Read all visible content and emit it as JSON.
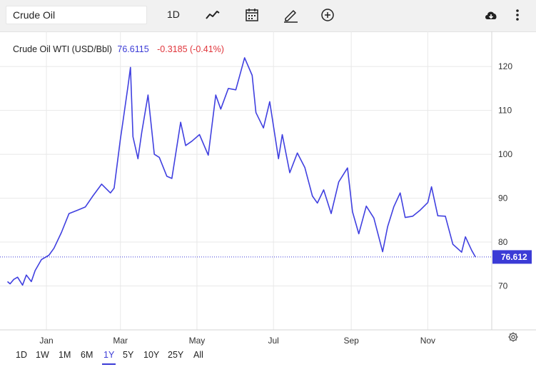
{
  "toolbar": {
    "search_value": "Crude Oil",
    "interval_label": "1D",
    "icons": [
      "line-chart-icon",
      "calendar-icon",
      "draw-pencil-icon",
      "add-circle-icon",
      "cloud-download-icon",
      "more-vertical-icon"
    ]
  },
  "header": {
    "name": "Crude Oil WTI (USD/Bbl)",
    "price": "76.6115",
    "change": "-0.3185 (-0.41%)"
  },
  "colors": {
    "line": "#4040e0",
    "price_tag": "#3b3bd6",
    "negative": "#e0353b",
    "grid": "#e8e8e8"
  },
  "price_tag": "76.612",
  "range_buttons": [
    "1D",
    "1W",
    "1M",
    "6M",
    "1Y",
    "5Y",
    "10Y",
    "25Y",
    "All"
  ],
  "active_range": "1Y",
  "chart_data": {
    "type": "line",
    "title": "",
    "series": [
      {
        "name": "Crude Oil WTI (USD/Bbl)",
        "x": [
          "2021-12-01",
          "2021-12-03",
          "2021-12-06",
          "2021-12-09",
          "2021-12-13",
          "2021-12-16",
          "2021-12-20",
          "2021-12-23",
          "2021-12-28",
          "2022-01-03",
          "2022-01-07",
          "2022-01-13",
          "2022-01-19",
          "2022-01-26",
          "2022-02-01",
          "2022-02-07",
          "2022-02-14",
          "2022-02-21",
          "2022-02-24",
          "2022-03-01",
          "2022-03-03",
          "2022-03-07",
          "2022-03-09",
          "2022-03-11",
          "2022-03-15",
          "2022-03-18",
          "2022-03-23",
          "2022-03-28",
          "2022-04-01",
          "2022-04-07",
          "2022-04-11",
          "2022-04-18",
          "2022-04-22",
          "2022-04-27",
          "2022-05-03",
          "2022-05-10",
          "2022-05-16",
          "2022-05-20",
          "2022-05-26",
          "2022-06-01",
          "2022-06-08",
          "2022-06-14",
          "2022-06-17",
          "2022-06-23",
          "2022-06-28",
          "2022-07-05",
          "2022-07-08",
          "2022-07-14",
          "2022-07-20",
          "2022-07-26",
          "2022-08-01",
          "2022-08-05",
          "2022-08-10",
          "2022-08-16",
          "2022-08-22",
          "2022-08-29",
          "2022-09-02",
          "2022-09-07",
          "2022-09-13",
          "2022-09-19",
          "2022-09-26",
          "2022-09-30",
          "2022-10-05",
          "2022-10-10",
          "2022-10-14",
          "2022-10-20",
          "2022-10-26",
          "2022-11-01",
          "2022-11-04",
          "2022-11-09",
          "2022-11-15",
          "2022-11-21",
          "2022-11-28",
          "2022-12-01",
          "2022-12-06",
          "2022-12-09"
        ],
        "y": [
          71,
          70.5,
          71.5,
          72,
          70.2,
          72.5,
          71,
          73.5,
          76,
          77,
          78.6,
          82.2,
          86.5,
          87.3,
          88,
          90.5,
          93.2,
          91.2,
          92.3,
          103.5,
          107.5,
          115.5,
          119.8,
          104,
          99,
          105,
          113.5,
          100,
          99.3,
          95,
          94.5,
          107.3,
          102,
          103,
          104.5,
          99.8,
          113.5,
          110.3,
          115,
          114.7,
          122,
          118,
          109.5,
          106,
          112,
          99,
          104.5,
          95.8,
          100.3,
          97,
          90.5,
          88.9,
          91.9,
          86.5,
          93.7,
          96.9,
          86.9,
          81.9,
          88.2,
          85.5,
          77.8,
          83.5,
          88.1,
          91.2,
          85.6,
          85.9,
          87.3,
          89,
          92.6,
          86,
          85.9,
          79.5,
          77.7,
          81.2,
          78.1,
          76.6
        ]
      }
    ],
    "xlabel": "",
    "ylabel": "",
    "x_ticks": [
      "Jan",
      "Mar",
      "May",
      "Jul",
      "Sep",
      "Nov"
    ],
    "x_tick_dates": [
      "2022-01-01",
      "2022-03-01",
      "2022-05-01",
      "2022-07-01",
      "2022-09-01",
      "2022-11-01"
    ],
    "y_ticks": [
      70,
      80,
      90,
      100,
      110,
      120
    ],
    "ylim": [
      60,
      128
    ],
    "xlim": [
      "2021-11-25",
      "2022-12-22"
    ],
    "last_value": 76.612,
    "grid": true,
    "legend": "none"
  }
}
